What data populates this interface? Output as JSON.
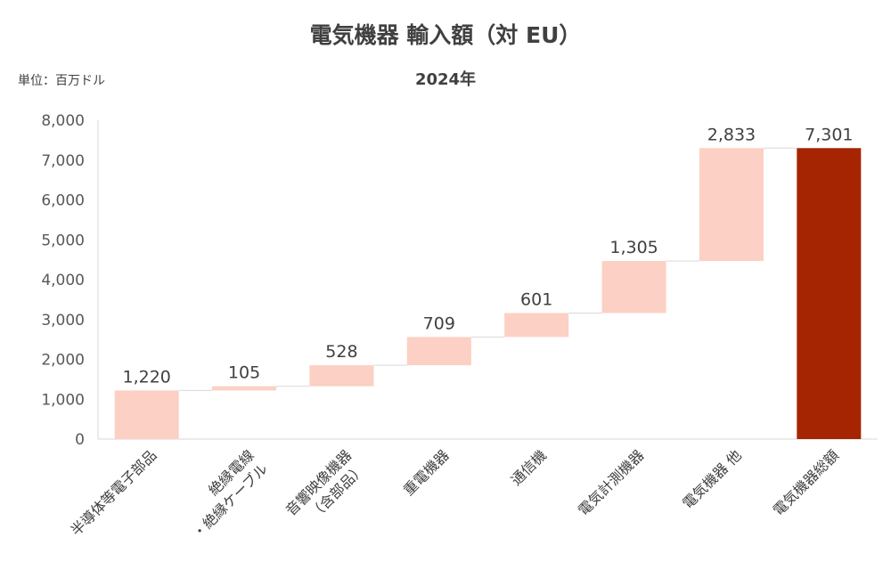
{
  "chart_data": {
    "type": "waterfall",
    "title": "電気機器 輸入額（対 EU）",
    "subtitle": "2024年",
    "unit_label": "単位：百万ドル",
    "ylim": [
      0,
      8000
    ],
    "yticks": [
      "0",
      "1,000",
      "2,000",
      "3,000",
      "4,000",
      "5,000",
      "6,000",
      "7,000",
      "8,000"
    ],
    "categories": [
      [
        "半導体等電子部品"
      ],
      [
        "絶縁電線",
        "・絶縁ケーブル"
      ],
      [
        "音響映像機器",
        "（含部品）"
      ],
      [
        "重電機器"
      ],
      [
        "通信機"
      ],
      [
        "電気計測機器"
      ],
      [
        "電気機器 他"
      ],
      [
        "電気機器総額"
      ]
    ],
    "values": [
      1220,
      105,
      528,
      709,
      601,
      1305,
      2833,
      7301
    ],
    "data_labels": [
      "1,220",
      "105",
      "528",
      "709",
      "601",
      "1,305",
      "2,833",
      "7,301"
    ],
    "is_total": [
      false,
      false,
      false,
      false,
      false,
      false,
      false,
      true
    ],
    "colors": {
      "increment": "#fcd0c4",
      "total": "#a52502",
      "connector": "#d9d9d9",
      "axis": "#d9d9d9"
    }
  }
}
